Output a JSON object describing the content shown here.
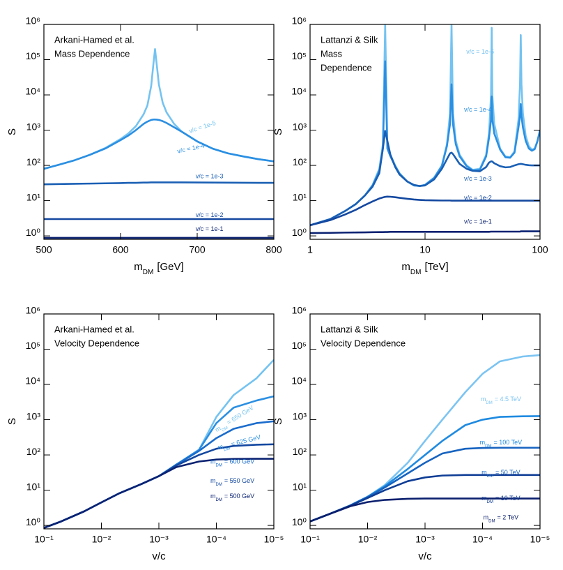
{
  "chart_data": [
    {
      "type": "line",
      "xlog": false,
      "ylog": true,
      "annotation": [
        "Arkani-Hamed et al.",
        "Mass Dependence"
      ],
      "ylabel": "S",
      "xlabel": {
        "symbol": "m",
        "subscript": "DM",
        "unit": "[GeV]"
      },
      "xlim": [
        500,
        800
      ],
      "xticks": [
        500,
        600,
        700,
        800
      ],
      "ylim": [
        0.8,
        1000000
      ],
      "yticks": [
        {
          "value": 1,
          "label": "10⁰"
        },
        {
          "value": 10,
          "label": "10¹"
        },
        {
          "value": 100,
          "label": "10²"
        },
        {
          "value": 1000,
          "label": "10³"
        },
        {
          "value": 10000,
          "label": "10⁴"
        },
        {
          "value": 100000,
          "label": "10⁵"
        },
        {
          "value": 1000000,
          "label": "10⁶"
        }
      ],
      "x": [
        500,
        520,
        540,
        560,
        580,
        600,
        610,
        620,
        630,
        635,
        640,
        643,
        645,
        647,
        650,
        655,
        660,
        670,
        680,
        700,
        720,
        740,
        760,
        780,
        800
      ],
      "series": [
        {
          "name": "v/c = 1e-5",
          "color": "#74c3f1",
          "values": [
            80,
            105,
            140,
            200,
            310,
            560,
            800,
            1300,
            2800,
            5000,
            18000,
            80000,
            200000,
            80000,
            20000,
            6000,
            3200,
            1500,
            900,
            480,
            300,
            220,
            180,
            150,
            130
          ]
        },
        {
          "name": "v/c = 1e-4",
          "color": "#2b8fe2",
          "values": [
            80,
            105,
            140,
            200,
            300,
            520,
            700,
            1000,
            1500,
            1750,
            1950,
            2000,
            2000,
            1990,
            1950,
            1800,
            1600,
            1200,
            900,
            480,
            300,
            220,
            180,
            150,
            130
          ]
        },
        {
          "name": "v/c = 1e-3",
          "color": "#1a5fb4",
          "values": [
            29,
            29.5,
            30,
            30.5,
            31,
            31.5,
            32,
            32,
            32.5,
            32.5,
            33,
            33,
            33,
            33,
            33,
            33,
            33,
            33,
            33,
            32.8,
            32.6,
            32.4,
            32.2,
            32,
            32
          ]
        },
        {
          "name": "v/c = 1e-2",
          "color": "#1448a0",
          "values": [
            3,
            3,
            3,
            3,
            3,
            3,
            3,
            3,
            3,
            3,
            3,
            3,
            3,
            3,
            3,
            3,
            3,
            3,
            3,
            3,
            3,
            3,
            3,
            3,
            3
          ]
        },
        {
          "name": "v/c = 1e-1",
          "color": "#0b2272",
          "values": [
            0.88,
            0.88,
            0.88,
            0.88,
            0.88,
            0.88,
            0.88,
            0.88,
            0.88,
            0.88,
            0.88,
            0.88,
            0.88,
            0.88,
            0.88,
            0.88,
            0.88,
            0.88,
            0.88,
            0.88,
            0.88,
            0.88,
            0.88,
            0.88,
            0.88
          ]
        }
      ]
    },
    {
      "type": "line",
      "xlog": true,
      "ylog": true,
      "annotation": [
        "Lattanzi & Silk",
        "Mass",
        "Dependence"
      ],
      "ylabel": "S",
      "xlabel": {
        "symbol": "m",
        "subscript": "DM",
        "unit": "[TeV]"
      },
      "xlim": [
        1,
        100
      ],
      "xticks": [
        1,
        10,
        100
      ],
      "ylim": [
        0.8,
        1000000
      ],
      "yticks": [
        {
          "value": 1,
          "label": "10⁰"
        },
        {
          "value": 10,
          "label": "10¹"
        },
        {
          "value": 100,
          "label": "10²"
        },
        {
          "value": 1000,
          "label": "10³"
        },
        {
          "value": 10000,
          "label": "10⁴"
        },
        {
          "value": 100000,
          "label": "10⁵"
        },
        {
          "value": 1000000,
          "label": "10⁶"
        }
      ],
      "x": [
        1,
        1.5,
        2,
        2.5,
        3,
        3.5,
        4,
        4.3,
        4.5,
        4.7,
        5,
        5.5,
        6,
        7,
        8,
        9,
        10,
        12,
        14,
        15.5,
        16.5,
        17,
        17.5,
        18.5,
        20,
        23,
        26,
        30,
        34,
        36,
        37.5,
        38,
        38.5,
        40,
        45,
        50,
        55,
        60,
        65,
        67,
        68,
        69,
        71,
        75,
        80,
        85,
        90,
        95,
        100
      ],
      "series": [
        {
          "name": "v/c = 1e-5",
          "color": "#74c3f1",
          "values": [
            2,
            3,
            5,
            8,
            14,
            28,
            80,
            400,
            1000000,
            400,
            200,
            100,
            60,
            35,
            27,
            26,
            28,
            45,
            100,
            400,
            3000,
            1000000,
            3000,
            500,
            200,
            100,
            75,
            80,
            200,
            800,
            10000,
            800000,
            10000,
            1500,
            300,
            180,
            170,
            250,
            2000,
            20000,
            500000,
            20000,
            3000,
            700,
            350,
            280,
            300,
            500,
            1000
          ]
        },
        {
          "name": "v/c = 1e-4",
          "color": "#2b8fe2",
          "values": [
            2,
            3,
            5,
            8,
            14,
            27,
            70,
            300,
            90000,
            300,
            180,
            95,
            58,
            35,
            27,
            26,
            28,
            44,
            95,
            350,
            1500,
            20000,
            1500,
            400,
            180,
            95,
            72,
            75,
            180,
            600,
            2000,
            9000,
            2000,
            800,
            280,
            170,
            165,
            230,
            1200,
            2500,
            5500,
            2500,
            1200,
            500,
            300,
            260,
            290,
            480,
            1000
          ]
        },
        {
          "name": "v/c = 1e-3",
          "color": "#1a5fb4",
          "values": [
            2,
            3,
            5,
            8,
            14,
            25,
            60,
            300,
            950,
            500,
            200,
            90,
            55,
            35,
            28,
            26,
            27,
            40,
            80,
            150,
            220,
            230,
            210,
            160,
            110,
            80,
            70,
            68,
            90,
            120,
            130,
            130,
            128,
            115,
            95,
            88,
            90,
            100,
            108,
            110,
            110,
            110,
            108,
            104,
            101,
            100,
            100,
            100,
            100
          ]
        },
        {
          "name": "v/c = 1e-2",
          "color": "#1448a0",
          "values": [
            2,
            2.8,
            4,
            5.5,
            7.5,
            9.5,
            11.5,
            12.3,
            12.8,
            13,
            12.9,
            12.5,
            12,
            11.3,
            10.8,
            10.5,
            10.3,
            10.2,
            10.1,
            10.1,
            10.1,
            10,
            10,
            10,
            10,
            10,
            10,
            10,
            10,
            10,
            10,
            10,
            10,
            10,
            10,
            10,
            10,
            10,
            10,
            10,
            10,
            10,
            10,
            10,
            10,
            10,
            10,
            10,
            10
          ]
        },
        {
          "name": "v/c = 1e-1",
          "color": "#0b2272",
          "values": [
            1.2,
            1.22,
            1.24,
            1.25,
            1.26,
            1.27,
            1.28,
            1.28,
            1.29,
            1.29,
            1.3,
            1.3,
            1.3,
            1.3,
            1.3,
            1.3,
            1.3,
            1.3,
            1.3,
            1.3,
            1.3,
            1.3,
            1.3,
            1.3,
            1.3,
            1.3,
            1.3,
            1.3,
            1.3,
            1.3,
            1.32,
            1.32,
            1.32,
            1.32,
            1.32,
            1.32,
            1.32,
            1.32,
            1.32,
            1.32,
            1.35,
            1.35,
            1.35,
            1.35,
            1.35,
            1.35,
            1.35,
            1.35,
            1.35
          ]
        }
      ]
    },
    {
      "type": "line",
      "xlog": true,
      "ylog": true,
      "annotation": [
        "Arkani-Hamed et al.",
        "Velocity Dependence"
      ],
      "ylabel": "S",
      "xlabel": "v/c",
      "label_symbol": "m",
      "label_subscript": "DM",
      "xlim": [
        0.1,
        1e-05
      ],
      "xticks": [
        {
          "value": 0.1,
          "label": "10⁻¹"
        },
        {
          "value": 0.01,
          "label": "10⁻²"
        },
        {
          "value": 0.001,
          "label": "10⁻³"
        },
        {
          "value": 0.0001,
          "label": "10⁻⁴"
        },
        {
          "value": 1e-05,
          "label": "10⁻⁵"
        }
      ],
      "ylim": [
        0.8,
        1000000
      ],
      "yticks": [
        {
          "value": 1,
          "label": "10⁰"
        },
        {
          "value": 10,
          "label": "10¹"
        },
        {
          "value": 100,
          "label": "10²"
        },
        {
          "value": 1000,
          "label": "10³"
        },
        {
          "value": 10000,
          "label": "10⁴"
        },
        {
          "value": 100000,
          "label": "10⁵"
        },
        {
          "value": 1000000,
          "label": "10⁶"
        }
      ],
      "x": [
        0.1,
        0.05,
        0.02,
        0.01,
        0.005,
        0.002,
        0.001,
        0.0005,
        0.0002,
        0.0001,
        5e-05,
        2e-05,
        1e-05
      ],
      "series": [
        {
          "name": "= 650 GeV",
          "color": "#74c3f1",
          "values": [
            0.85,
            1.3,
            2.5,
            4.5,
            8,
            15,
            25,
            53,
            140,
            1200,
            5000,
            15000,
            50000
          ]
        },
        {
          "name": "= 625 GeV",
          "color": "#2b8fe2",
          "values": [
            0.85,
            1.3,
            2.5,
            4.5,
            8,
            15,
            25,
            53,
            140,
            800,
            2200,
            3500,
            4600
          ]
        },
        {
          "name": "= 600 GeV",
          "color": "#1a6ccc",
          "values": [
            0.85,
            1.3,
            2.5,
            4.5,
            8,
            15,
            25,
            52,
            130,
            300,
            550,
            800,
            900
          ]
        },
        {
          "name": "= 550 GeV",
          "color": "#1448a0",
          "values": [
            0.85,
            1.3,
            2.5,
            4.5,
            8,
            15,
            25,
            50,
            100,
            150,
            180,
            195,
            200
          ]
        },
        {
          "name": "= 500 GeV",
          "color": "#0b2272",
          "values": [
            0.85,
            1.3,
            2.5,
            4.5,
            8,
            15,
            25,
            45,
            65,
            74,
            77,
            78,
            78
          ]
        }
      ]
    },
    {
      "type": "line",
      "xlog": true,
      "ylog": true,
      "annotation": [
        "Lattanzi & Silk",
        "Velocity Dependence"
      ],
      "ylabel": "S",
      "xlabel": "v/c",
      "label_symbol": "m",
      "label_subscript": "DM",
      "xlim": [
        0.1,
        1e-05
      ],
      "xticks": [
        {
          "value": 0.1,
          "label": "10⁻¹"
        },
        {
          "value": 0.01,
          "label": "10⁻²"
        },
        {
          "value": 0.001,
          "label": "10⁻³"
        },
        {
          "value": 0.0001,
          "label": "10⁻⁴"
        },
        {
          "value": 1e-05,
          "label": "10⁻⁵"
        }
      ],
      "ylim": [
        0.8,
        1000000
      ],
      "yticks": [
        {
          "value": 1,
          "label": "10⁰"
        },
        {
          "value": 10,
          "label": "10¹"
        },
        {
          "value": 100,
          "label": "10²"
        },
        {
          "value": 1000,
          "label": "10³"
        },
        {
          "value": 10000,
          "label": "10⁴"
        },
        {
          "value": 100000,
          "label": "10⁵"
        },
        {
          "value": 1000000,
          "label": "10⁶"
        }
      ],
      "x": [
        0.1,
        0.05,
        0.02,
        0.01,
        0.005,
        0.002,
        0.001,
        0.0005,
        0.0002,
        0.0001,
        5e-05,
        2e-05,
        1e-05
      ],
      "series": [
        {
          "name": "= 4.5 TeV",
          "color": "#7cc4f2",
          "values": [
            1.3,
            2,
            3.7,
            6.5,
            14,
            60,
            250,
            1000,
            6000,
            20000,
            45000,
            62000,
            68000
          ]
        },
        {
          "name": "= 100 TeV",
          "color": "#1f8ae0",
          "values": [
            1.3,
            2,
            3.7,
            6.5,
            13,
            40,
            100,
            250,
            700,
            1000,
            1200,
            1250,
            1260
          ]
        },
        {
          "name": "= 50 TeV",
          "color": "#1663c0",
          "values": [
            1.3,
            2,
            3.7,
            6.3,
            12,
            30,
            60,
            110,
            150,
            158,
            160,
            160,
            160
          ]
        },
        {
          "name": "= 10 TeV",
          "color": "#0f3d95",
          "values": [
            1.3,
            2,
            3.6,
            6,
            10,
            18,
            23,
            26,
            27,
            27,
            27,
            27,
            27
          ]
        },
        {
          "name": "= 2 TeV",
          "color": "#0a1f6e",
          "values": [
            1.3,
            2,
            3.5,
            4.6,
            5.3,
            5.7,
            5.8,
            5.8,
            5.8,
            5.8,
            5.8,
            5.8,
            5.8
          ]
        }
      ]
    }
  ]
}
